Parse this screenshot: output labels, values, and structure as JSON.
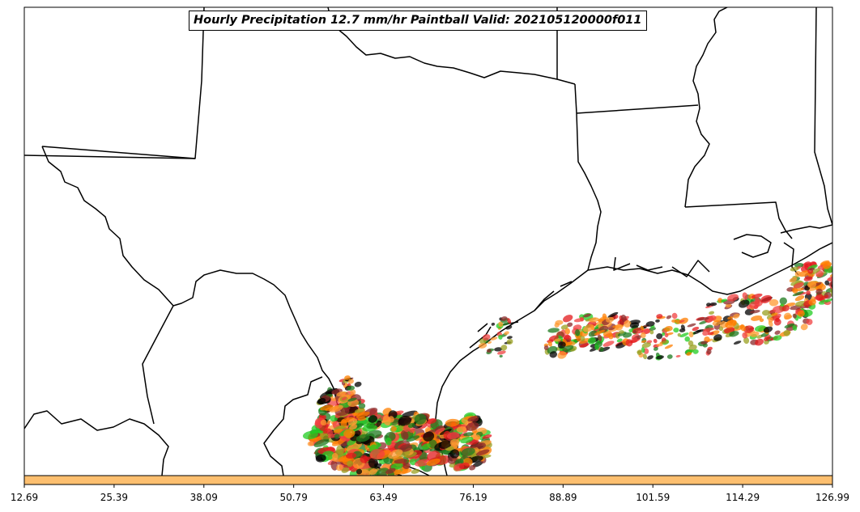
{
  "title": "Hourly Precipitation 12.7 mm/hr Paintball Valid: 202105120000f011",
  "colorbar": {
    "fill_color": "#fdbf6f",
    "ticks": [
      "12.69",
      "25.39",
      "38.09",
      "50.79",
      "63.49",
      "76.19",
      "88.89",
      "101.59",
      "114.29",
      "126.99"
    ]
  },
  "paintball_colors": [
    "#8b2a2a",
    "#ff7f00",
    "#e31a1c",
    "#f04040",
    "#9aa020",
    "#1e7a1e",
    "#22cc22",
    "#000000",
    "#ff9a30"
  ]
}
